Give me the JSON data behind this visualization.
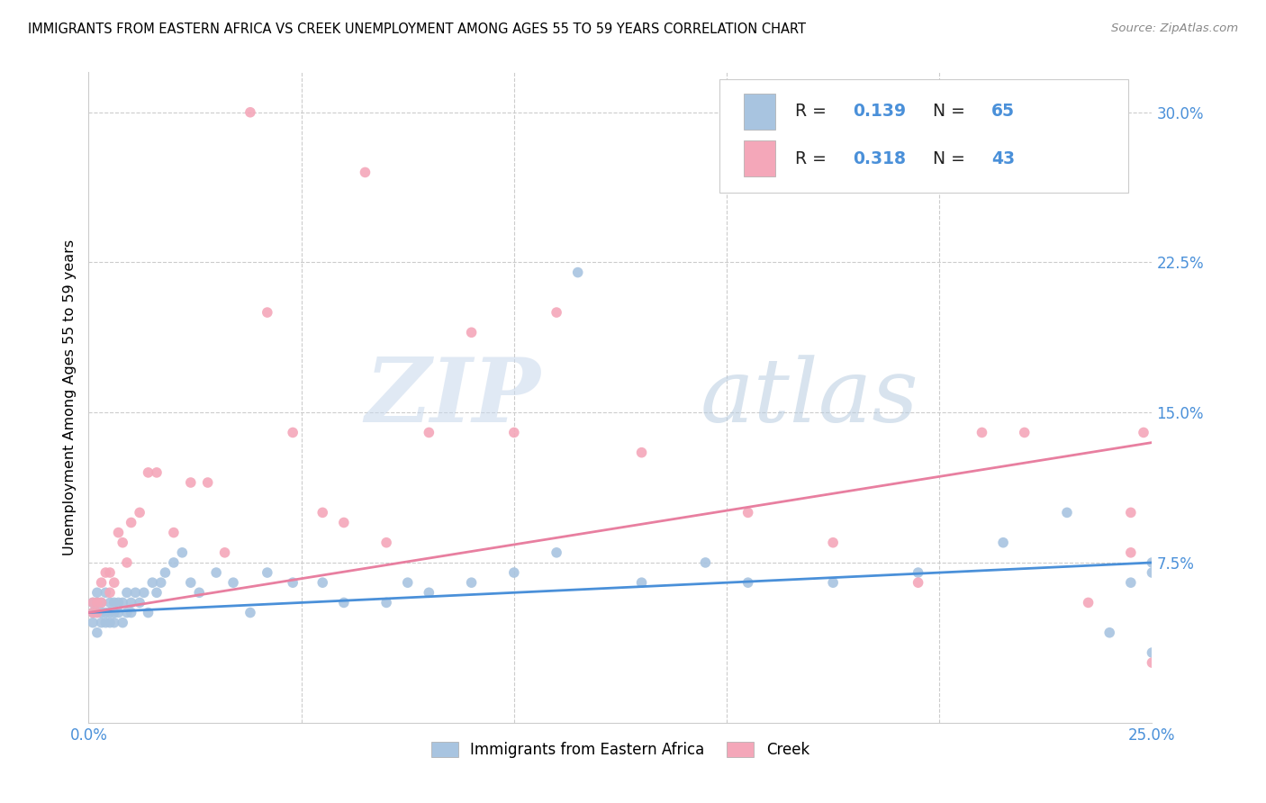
{
  "title": "IMMIGRANTS FROM EASTERN AFRICA VS CREEK UNEMPLOYMENT AMONG AGES 55 TO 59 YEARS CORRELATION CHART",
  "source": "Source: ZipAtlas.com",
  "ylabel": "Unemployment Among Ages 55 to 59 years",
  "x_min": 0.0,
  "x_max": 0.25,
  "y_min": -0.005,
  "y_max": 0.32,
  "x_ticks": [
    0.0,
    0.05,
    0.1,
    0.15,
    0.2,
    0.25
  ],
  "x_tick_labels": [
    "0.0%",
    "",
    "",
    "",
    "",
    "25.0%"
  ],
  "y_ticks": [
    0.0,
    0.075,
    0.15,
    0.225,
    0.3
  ],
  "y_tick_labels": [
    "",
    "7.5%",
    "15.0%",
    "22.5%",
    "30.0%"
  ],
  "legend_labels": [
    "Immigrants from Eastern Africa",
    "Creek"
  ],
  "legend_R": [
    "0.139",
    "0.318"
  ],
  "legend_N": [
    "65",
    "43"
  ],
  "blue_color": "#a8c4e0",
  "pink_color": "#f4a7b9",
  "blue_line_color": "#4a90d9",
  "pink_line_color": "#e87fa0",
  "watermark_zip": "ZIP",
  "watermark_atlas": "atlas",
  "blue_scatter_x": [
    0.001,
    0.001,
    0.001,
    0.002,
    0.002,
    0.002,
    0.002,
    0.003,
    0.003,
    0.003,
    0.004,
    0.004,
    0.004,
    0.005,
    0.005,
    0.005,
    0.006,
    0.006,
    0.006,
    0.007,
    0.007,
    0.008,
    0.008,
    0.009,
    0.009,
    0.01,
    0.01,
    0.011,
    0.012,
    0.013,
    0.014,
    0.015,
    0.016,
    0.017,
    0.018,
    0.02,
    0.022,
    0.024,
    0.026,
    0.03,
    0.034,
    0.038,
    0.042,
    0.048,
    0.055,
    0.06,
    0.07,
    0.075,
    0.08,
    0.09,
    0.1,
    0.11,
    0.115,
    0.13,
    0.145,
    0.155,
    0.175,
    0.195,
    0.215,
    0.23,
    0.24,
    0.245,
    0.25,
    0.25,
    0.25
  ],
  "blue_scatter_y": [
    0.045,
    0.05,
    0.055,
    0.04,
    0.05,
    0.055,
    0.06,
    0.045,
    0.05,
    0.055,
    0.045,
    0.05,
    0.06,
    0.045,
    0.05,
    0.055,
    0.045,
    0.05,
    0.055,
    0.05,
    0.055,
    0.045,
    0.055,
    0.05,
    0.06,
    0.05,
    0.055,
    0.06,
    0.055,
    0.06,
    0.05,
    0.065,
    0.06,
    0.065,
    0.07,
    0.075,
    0.08,
    0.065,
    0.06,
    0.07,
    0.065,
    0.05,
    0.07,
    0.065,
    0.065,
    0.055,
    0.055,
    0.065,
    0.06,
    0.065,
    0.07,
    0.08,
    0.22,
    0.065,
    0.075,
    0.065,
    0.065,
    0.07,
    0.085,
    0.1,
    0.04,
    0.065,
    0.07,
    0.075,
    0.03
  ],
  "pink_scatter_x": [
    0.001,
    0.001,
    0.002,
    0.002,
    0.003,
    0.003,
    0.004,
    0.005,
    0.005,
    0.006,
    0.007,
    0.008,
    0.009,
    0.01,
    0.012,
    0.014,
    0.016,
    0.02,
    0.024,
    0.028,
    0.032,
    0.038,
    0.042,
    0.048,
    0.055,
    0.06,
    0.065,
    0.07,
    0.08,
    0.09,
    0.1,
    0.11,
    0.13,
    0.155,
    0.175,
    0.195,
    0.21,
    0.22,
    0.235,
    0.245,
    0.245,
    0.248,
    0.25
  ],
  "pink_scatter_y": [
    0.05,
    0.055,
    0.05,
    0.055,
    0.055,
    0.065,
    0.07,
    0.06,
    0.07,
    0.065,
    0.09,
    0.085,
    0.075,
    0.095,
    0.1,
    0.12,
    0.12,
    0.09,
    0.115,
    0.115,
    0.08,
    0.3,
    0.2,
    0.14,
    0.1,
    0.095,
    0.27,
    0.085,
    0.14,
    0.19,
    0.14,
    0.2,
    0.13,
    0.1,
    0.085,
    0.065,
    0.14,
    0.14,
    0.055,
    0.08,
    0.1,
    0.14,
    0.025
  ],
  "blue_line_x0": 0.0,
  "blue_line_x1": 0.25,
  "blue_line_y0": 0.05,
  "blue_line_y1": 0.075,
  "pink_line_x0": 0.0,
  "pink_line_x1": 0.25,
  "pink_line_y0": 0.05,
  "pink_line_y1": 0.135
}
